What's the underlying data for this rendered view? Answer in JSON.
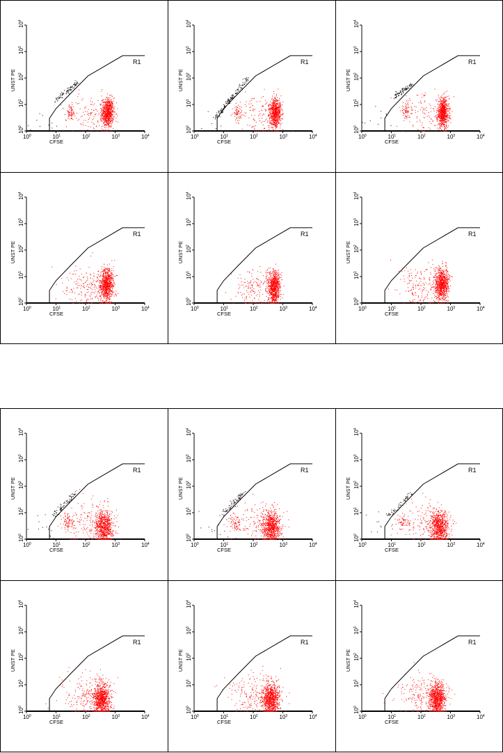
{
  "chart_data": [
    {
      "type": "scatter",
      "group": "top",
      "xlabel": "CFSE",
      "ylabel": "UNST PE",
      "x_scale": "log",
      "y_scale": "log",
      "xlim": [
        1,
        10000
      ],
      "ylim": [
        1,
        10000
      ],
      "x_ticks": [
        {
          "base": "10",
          "exp": "0"
        },
        {
          "base": "10",
          "exp": "1"
        },
        {
          "base": "10",
          "exp": "2"
        },
        {
          "base": "10",
          "exp": "3"
        },
        {
          "base": "10",
          "exp": "4"
        }
      ],
      "y_ticks": [
        {
          "base": "10",
          "exp": "0"
        },
        {
          "base": "10",
          "exp": "1"
        },
        {
          "base": "10",
          "exp": "2"
        },
        {
          "base": "10",
          "exp": "3"
        },
        {
          "base": "10",
          "exp": "4"
        }
      ],
      "gate": {
        "label": "R1",
        "vertices": [
          [
            6,
            1
          ],
          [
            6,
            3
          ],
          [
            10,
            7
          ],
          [
            30,
            25
          ],
          [
            120,
            120
          ],
          [
            1800,
            700
          ],
          [
            10000,
            700
          ]
        ]
      },
      "colors": {
        "gated": "#ff0000",
        "ungated": "#000000",
        "gate_line": "#000000"
      },
      "panels": [
        {
          "populations": [
            {
              "name": "",
              "color": "gated",
              "center": [
                550,
                5
              ],
              "spread": [
                0.1,
                0.28
              ],
              "count": 700
            },
            {
              "name": "",
              "color": "gated",
              "center": [
                30,
                5
              ],
              "spread": [
                0.08,
                0.14
              ],
              "count": 70
            },
            {
              "name": "",
              "color": "gated",
              "center": [
                150,
                4
              ],
              "spread": [
                0.4,
                0.4
              ],
              "count": 120
            },
            {
              "name": "",
              "color": "ungated",
              "diagonal_from": [
                10,
                15
              ],
              "diagonal_to": [
                55,
                70
              ],
              "count": 90
            },
            {
              "name": "",
              "color": "ungated",
              "center": [
                4,
                3
              ],
              "spread": [
                0.3,
                0.3
              ],
              "count": 12
            }
          ]
        },
        {
          "populations": [
            {
              "name": "",
              "color": "gated",
              "center": [
                550,
                5
              ],
              "spread": [
                0.1,
                0.28
              ],
              "count": 700
            },
            {
              "name": "",
              "color": "gated",
              "center": [
                30,
                5
              ],
              "spread": [
                0.08,
                0.14
              ],
              "count": 60
            },
            {
              "name": "",
              "color": "gated",
              "center": [
                150,
                4
              ],
              "spread": [
                0.4,
                0.4
              ],
              "count": 120
            },
            {
              "name": "",
              "color": "ungated",
              "diagonal_from": [
                5,
                3
              ],
              "diagonal_to": [
                60,
                90
              ],
              "count": 150
            },
            {
              "name": "",
              "color": "ungated",
              "center": [
                4,
                2
              ],
              "spread": [
                0.3,
                0.3
              ],
              "count": 12
            }
          ]
        },
        {
          "populations": [
            {
              "name": "",
              "color": "gated",
              "center": [
                550,
                5
              ],
              "spread": [
                0.1,
                0.28
              ],
              "count": 700
            },
            {
              "name": "",
              "color": "gated",
              "center": [
                30,
                6
              ],
              "spread": [
                0.08,
                0.14
              ],
              "count": 70
            },
            {
              "name": "",
              "color": "gated",
              "center": [
                150,
                4
              ],
              "spread": [
                0.4,
                0.4
              ],
              "count": 120
            },
            {
              "name": "",
              "color": "ungated",
              "diagonal_from": [
                12,
                20
              ],
              "diagonal_to": [
                50,
                60
              ],
              "count": 90
            },
            {
              "name": "",
              "color": "ungated",
              "center": [
                4,
                3
              ],
              "spread": [
                0.3,
                0.3
              ],
              "count": 12
            }
          ]
        },
        {
          "populations": [
            {
              "name": "",
              "color": "gated",
              "center": [
                500,
                5
              ],
              "spread": [
                0.12,
                0.3
              ],
              "count": 800
            },
            {
              "name": "",
              "color": "gated",
              "center": [
                100,
                4
              ],
              "spread": [
                0.4,
                0.4
              ],
              "count": 180
            }
          ]
        },
        {
          "populations": [
            {
              "name": "",
              "color": "gated",
              "center": [
                500,
                4
              ],
              "spread": [
                0.1,
                0.3
              ],
              "count": 800
            },
            {
              "name": "",
              "color": "gated",
              "center": [
                100,
                4
              ],
              "spread": [
                0.4,
                0.4
              ],
              "count": 160
            }
          ]
        },
        {
          "populations": [
            {
              "name": "",
              "color": "gated",
              "center": [
                500,
                5
              ],
              "spread": [
                0.12,
                0.3
              ],
              "count": 800
            },
            {
              "name": "",
              "color": "gated",
              "center": [
                100,
                5
              ],
              "spread": [
                0.4,
                0.4
              ],
              "count": 180
            }
          ]
        }
      ]
    },
    {
      "type": "scatter",
      "group": "bottom",
      "xlabel": "CFSE",
      "ylabel": "UNST PE",
      "x_scale": "log",
      "y_scale": "log",
      "xlim": [
        1,
        10000
      ],
      "ylim": [
        1,
        10000
      ],
      "x_ticks": [
        {
          "base": "10",
          "exp": "0"
        },
        {
          "base": "10",
          "exp": "1"
        },
        {
          "base": "10",
          "exp": "2"
        },
        {
          "base": "10",
          "exp": "3"
        },
        {
          "base": "10",
          "exp": "4"
        }
      ],
      "y_ticks": [
        {
          "base": "10",
          "exp": "0"
        },
        {
          "base": "10",
          "exp": "1"
        },
        {
          "base": "10",
          "exp": "2"
        },
        {
          "base": "10",
          "exp": "3"
        },
        {
          "base": "10",
          "exp": "4"
        }
      ],
      "gate": {
        "label": "R1",
        "vertices": [
          [
            6,
            1
          ],
          [
            6,
            3
          ],
          [
            10,
            7
          ],
          [
            30,
            25
          ],
          [
            120,
            120
          ],
          [
            1800,
            700
          ],
          [
            10000,
            700
          ]
        ]
      },
      "colors": {
        "gated": "#ff0000",
        "ungated": "#000000",
        "gate_line": "#000000"
      },
      "panels": [
        {
          "populations": [
            {
              "name": "",
              "color": "gated",
              "center": [
                400,
                3
              ],
              "spread": [
                0.15,
                0.3
              ],
              "count": 750
            },
            {
              "name": "",
              "color": "gated",
              "center": [
                25,
                5
              ],
              "spread": [
                0.1,
                0.15
              ],
              "count": 70
            },
            {
              "name": "",
              "color": "gated",
              "center": [
                120,
                4
              ],
              "spread": [
                0.45,
                0.4
              ],
              "count": 150
            },
            {
              "name": "",
              "color": "ungated",
              "diagonal_from": [
                8,
                8
              ],
              "diagonal_to": [
                45,
                55
              ],
              "count": 80
            },
            {
              "name": "",
              "color": "ungated",
              "center": [
                4,
                3
              ],
              "spread": [
                0.3,
                0.3
              ],
              "count": 12
            }
          ]
        },
        {
          "populations": [
            {
              "name": "",
              "color": "gated",
              "center": [
                400,
                3
              ],
              "spread": [
                0.15,
                0.3
              ],
              "count": 750
            },
            {
              "name": "",
              "color": "gated",
              "center": [
                25,
                4
              ],
              "spread": [
                0.1,
                0.15
              ],
              "count": 60
            },
            {
              "name": "",
              "color": "gated",
              "center": [
                120,
                4
              ],
              "spread": [
                0.45,
                0.4
              ],
              "count": 150
            },
            {
              "name": "",
              "color": "ungated",
              "diagonal_from": [
                8,
                8
              ],
              "diagonal_to": [
                50,
                60
              ],
              "count": 80
            },
            {
              "name": "",
              "color": "ungated",
              "center": [
                4,
                3
              ],
              "spread": [
                0.3,
                0.3
              ],
              "count": 12
            }
          ]
        },
        {
          "populations": [
            {
              "name": "",
              "color": "gated",
              "center": [
                400,
                3
              ],
              "spread": [
                0.15,
                0.3
              ],
              "count": 750
            },
            {
              "name": "",
              "color": "gated",
              "center": [
                25,
                5
              ],
              "spread": [
                0.1,
                0.15
              ],
              "count": 60
            },
            {
              "name": "",
              "color": "gated",
              "center": [
                120,
                4
              ],
              "spread": [
                0.45,
                0.4
              ],
              "count": 150
            },
            {
              "name": "",
              "color": "ungated",
              "diagonal_from": [
                8,
                8
              ],
              "diagonal_to": [
                45,
                55
              ],
              "count": 60
            },
            {
              "name": "",
              "color": "ungated",
              "center": [
                4,
                3
              ],
              "spread": [
                0.3,
                0.3
              ],
              "count": 12
            }
          ]
        },
        {
          "populations": [
            {
              "name": "",
              "color": "gated",
              "center": [
                350,
                3
              ],
              "spread": [
                0.14,
                0.3
              ],
              "count": 850
            },
            {
              "name": "",
              "color": "gated",
              "center": [
                100,
                4
              ],
              "spread": [
                0.45,
                0.4
              ],
              "count": 200
            }
          ]
        },
        {
          "populations": [
            {
              "name": "",
              "color": "gated",
              "center": [
                380,
                3
              ],
              "spread": [
                0.14,
                0.3
              ],
              "count": 850
            },
            {
              "name": "",
              "color": "gated",
              "center": [
                100,
                4
              ],
              "spread": [
                0.45,
                0.4
              ],
              "count": 200
            }
          ]
        },
        {
          "populations": [
            {
              "name": "",
              "color": "gated",
              "center": [
                350,
                3
              ],
              "spread": [
                0.14,
                0.3
              ],
              "count": 850
            },
            {
              "name": "",
              "color": "gated",
              "center": [
                100,
                4
              ],
              "spread": [
                0.45,
                0.4
              ],
              "count": 200
            }
          ]
        }
      ]
    }
  ]
}
